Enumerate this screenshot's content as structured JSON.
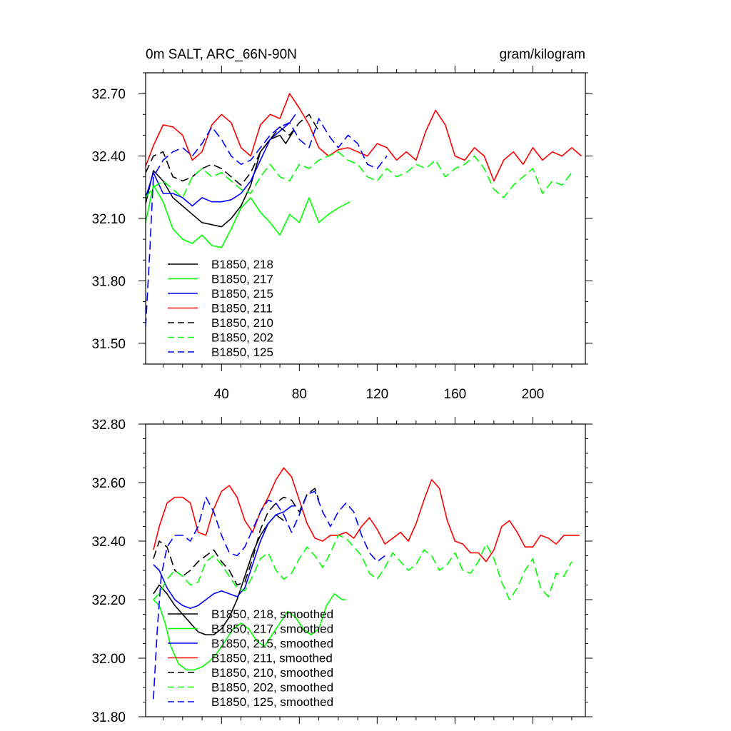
{
  "chart_data": [
    {
      "type": "line",
      "title": "0m SALT, ARC_66N-90N",
      "units": "gram/kilogram",
      "xlabel": "",
      "ylabel": "",
      "xlim": [
        1,
        227
      ],
      "ylim": [
        31.4,
        32.8
      ],
      "x_ticks": [
        40,
        80,
        120,
        160,
        200
      ],
      "y_ticks": [
        31.5,
        31.8,
        32.1,
        32.4,
        32.7
      ],
      "y_tick_labels": [
        "31.50",
        "31.80",
        "32.10",
        "32.40",
        "32.70"
      ],
      "legend_position": "lower-left",
      "series": [
        {
          "name": "B1850, 218",
          "color": "#000000",
          "dash": "solid",
          "x": [
            1,
            5,
            10,
            15,
            20,
            25,
            30,
            35,
            40,
            45,
            50,
            55,
            60,
            65,
            70,
            73,
            77
          ],
          "y": [
            32.17,
            32.33,
            32.28,
            32.2,
            32.16,
            32.12,
            32.08,
            32.07,
            32.06,
            32.1,
            32.16,
            32.26,
            32.42,
            32.48,
            32.5,
            32.46,
            32.52
          ]
        },
        {
          "name": "B1850, 217",
          "color": "#00ff00",
          "dash": "solid",
          "x": [
            1,
            5,
            10,
            15,
            20,
            25,
            30,
            35,
            40,
            45,
            50,
            55,
            60,
            65,
            70,
            75,
            80,
            85,
            90,
            95,
            100,
            106
          ],
          "y": [
            32.08,
            32.26,
            32.18,
            32.05,
            32.0,
            31.98,
            32.02,
            31.97,
            31.96,
            32.05,
            32.15,
            32.2,
            32.13,
            32.08,
            32.02,
            32.12,
            32.08,
            32.2,
            32.08,
            32.12,
            32.15,
            32.18
          ]
        },
        {
          "name": "B1850, 215",
          "color": "#0000ff",
          "dash": "solid",
          "x": [
            1,
            5,
            10,
            15,
            20,
            25,
            30,
            35,
            40,
            45,
            50,
            55,
            60,
            65,
            70,
            75,
            78
          ],
          "y": [
            32.2,
            32.32,
            32.22,
            32.22,
            32.2,
            32.16,
            32.2,
            32.18,
            32.18,
            32.19,
            32.22,
            32.28,
            32.38,
            32.48,
            32.52,
            32.56,
            32.6
          ]
        },
        {
          "name": "B1850, 211",
          "color": "#ff0000",
          "dash": "solid",
          "x": [
            1,
            5,
            10,
            15,
            20,
            25,
            30,
            35,
            40,
            45,
            50,
            55,
            60,
            65,
            70,
            75,
            80,
            85,
            90,
            95,
            100,
            105,
            110,
            115,
            120,
            125,
            130,
            135,
            140,
            145,
            150,
            155,
            160,
            165,
            170,
            175,
            180,
            185,
            190,
            195,
            200,
            205,
            210,
            215,
            220,
            225
          ],
          "y": [
            32.35,
            32.45,
            32.55,
            32.54,
            32.5,
            32.38,
            32.42,
            32.55,
            32.6,
            32.56,
            32.44,
            32.4,
            32.55,
            32.6,
            32.58,
            32.7,
            32.63,
            32.55,
            32.44,
            32.4,
            32.43,
            32.44,
            32.42,
            32.4,
            32.46,
            32.44,
            32.38,
            32.42,
            32.38,
            32.52,
            32.62,
            32.55,
            32.4,
            32.38,
            32.44,
            32.4,
            32.28,
            32.38,
            32.42,
            32.36,
            32.44,
            32.38,
            32.42,
            32.4,
            32.44,
            32.4
          ]
        },
        {
          "name": "B1850, 210",
          "color": "#000000",
          "dash": "dashed",
          "x": [
            1,
            5,
            10,
            15,
            20,
            25,
            30,
            35,
            40,
            45,
            50,
            55,
            60,
            65,
            70,
            75,
            80,
            85,
            90
          ],
          "y": [
            32.32,
            32.4,
            32.42,
            32.3,
            32.28,
            32.3,
            32.34,
            32.36,
            32.34,
            32.3,
            32.26,
            32.32,
            32.42,
            32.48,
            32.54,
            32.5,
            32.56,
            32.6,
            32.52
          ]
        },
        {
          "name": "B1850, 202",
          "color": "#00ff00",
          "dash": "dashed",
          "x": [
            1,
            5,
            10,
            15,
            20,
            25,
            30,
            35,
            40,
            45,
            50,
            55,
            60,
            65,
            70,
            75,
            80,
            85,
            90,
            95,
            100,
            105,
            110,
            115,
            120,
            125,
            130,
            135,
            140,
            145,
            150,
            155,
            160,
            165,
            170,
            175,
            180,
            185,
            190,
            195,
            200,
            205,
            210,
            215,
            220
          ],
          "y": [
            32.2,
            32.25,
            32.28,
            32.24,
            32.2,
            32.3,
            32.34,
            32.3,
            32.32,
            32.28,
            32.24,
            32.22,
            32.3,
            32.36,
            32.3,
            32.28,
            32.36,
            32.34,
            32.38,
            32.4,
            32.42,
            32.38,
            32.36,
            32.3,
            32.28,
            32.34,
            32.3,
            32.32,
            32.36,
            32.34,
            32.38,
            32.3,
            32.34,
            32.36,
            32.4,
            32.34,
            32.24,
            32.2,
            32.26,
            32.3,
            32.34,
            32.22,
            32.28,
            32.26,
            32.32
          ]
        },
        {
          "name": "B1850, 125",
          "color": "#0000ff",
          "dash": "dashed",
          "x": [
            1,
            3,
            5,
            10,
            15,
            20,
            25,
            30,
            35,
            40,
            45,
            50,
            55,
            60,
            65,
            70,
            75,
            80,
            85,
            90,
            95,
            100,
            105,
            110,
            115,
            120,
            125
          ],
          "y": [
            31.58,
            31.92,
            32.3,
            32.38,
            32.42,
            32.44,
            32.4,
            32.46,
            32.54,
            32.48,
            32.4,
            32.36,
            32.38,
            32.44,
            32.5,
            32.54,
            32.56,
            32.48,
            32.44,
            32.58,
            32.5,
            32.44,
            32.5,
            32.46,
            32.36,
            32.34,
            32.4
          ]
        }
      ]
    },
    {
      "type": "line",
      "title": "",
      "xlabel": "",
      "ylabel": "",
      "xlim": [
        1,
        227
      ],
      "ylim": [
        31.8,
        32.8
      ],
      "y_ticks": [
        31.8,
        32.0,
        32.2,
        32.4,
        32.6,
        32.8
      ],
      "y_tick_labels": [
        "31.80",
        "32.00",
        "32.20",
        "32.40",
        "32.60",
        "32.80"
      ],
      "legend_position": "lower-left",
      "series": [
        {
          "name": "B1850, 218, smoothed",
          "color": "#000000",
          "dash": "solid",
          "x": [
            5,
            8,
            12,
            16,
            20,
            24,
            28,
            32,
            36,
            40,
            44,
            48,
            52,
            56,
            60,
            64,
            68,
            72
          ],
          "y": [
            32.22,
            32.25,
            32.22,
            32.18,
            32.15,
            32.12,
            32.09,
            32.08,
            32.08,
            32.1,
            32.14,
            32.2,
            32.28,
            32.36,
            32.42,
            32.46,
            32.49,
            32.47
          ]
        },
        {
          "name": "B1850, 217, smoothed",
          "color": "#00ff00",
          "dash": "solid",
          "x": [
            5,
            8,
            11,
            14,
            18,
            22,
            26,
            30,
            34,
            38,
            42,
            46,
            50,
            54,
            58,
            62,
            66,
            70,
            74,
            78,
            82,
            86,
            90,
            94,
            98,
            102,
            104
          ],
          "y": [
            32.2,
            32.18,
            32.12,
            32.04,
            31.98,
            31.96,
            31.96,
            31.97,
            31.99,
            32.02,
            32.06,
            32.1,
            32.12,
            32.1,
            32.06,
            32.04,
            32.08,
            32.12,
            32.16,
            32.14,
            32.1,
            32.08,
            32.1,
            32.18,
            32.22,
            32.2,
            32.2
          ]
        },
        {
          "name": "B1850, 215, smoothed",
          "color": "#0000ff",
          "dash": "solid",
          "x": [
            5,
            8,
            12,
            16,
            20,
            24,
            28,
            32,
            36,
            40,
            44,
            48,
            52,
            56,
            60,
            64,
            68,
            72,
            76,
            78
          ],
          "y": [
            32.32,
            32.3,
            32.24,
            32.2,
            32.18,
            32.17,
            32.18,
            32.2,
            32.22,
            32.23,
            32.22,
            32.21,
            32.24,
            32.32,
            32.4,
            32.46,
            32.49,
            32.5,
            32.52,
            32.52
          ]
        },
        {
          "name": "B1850, 211, smoothed",
          "color": "#ff0000",
          "dash": "solid",
          "x": [
            5,
            8,
            12,
            16,
            20,
            24,
            28,
            32,
            36,
            40,
            44,
            48,
            52,
            56,
            60,
            64,
            68,
            72,
            76,
            80,
            84,
            88,
            92,
            96,
            100,
            104,
            108,
            112,
            116,
            120,
            124,
            128,
            132,
            136,
            140,
            144,
            148,
            152,
            156,
            160,
            164,
            168,
            172,
            176,
            180,
            184,
            188,
            192,
            196,
            200,
            204,
            208,
            212,
            216,
            220,
            224
          ],
          "y": [
            32.37,
            32.45,
            32.53,
            32.55,
            32.55,
            32.53,
            32.43,
            32.42,
            32.51,
            32.57,
            32.59,
            32.55,
            32.47,
            32.43,
            32.5,
            32.55,
            32.61,
            32.65,
            32.62,
            32.54,
            32.46,
            32.41,
            32.4,
            32.42,
            32.42,
            32.43,
            32.41,
            32.45,
            32.48,
            32.44,
            32.39,
            32.41,
            32.43,
            32.4,
            32.46,
            32.54,
            32.61,
            32.58,
            32.47,
            32.4,
            32.39,
            32.36,
            32.36,
            32.33,
            32.37,
            32.45,
            32.47,
            32.43,
            32.38,
            32.38,
            32.42,
            32.41,
            32.39,
            32.42,
            32.42,
            32.42
          ]
        },
        {
          "name": "B1850, 210, smoothed",
          "color": "#000000",
          "dash": "dashed",
          "x": [
            5,
            8,
            12,
            16,
            20,
            24,
            28,
            32,
            36,
            40,
            44,
            48,
            52,
            56,
            60,
            64,
            68,
            72,
            76,
            80,
            84,
            88,
            90
          ],
          "y": [
            32.34,
            32.4,
            32.38,
            32.3,
            32.28,
            32.3,
            32.33,
            32.35,
            32.37,
            32.33,
            32.3,
            32.25,
            32.26,
            32.34,
            32.44,
            32.5,
            32.53,
            32.55,
            32.54,
            32.5,
            32.56,
            32.58,
            32.54
          ]
        },
        {
          "name": "B1850, 202, smoothed",
          "color": "#00ff00",
          "dash": "dashed",
          "x": [
            5,
            8,
            12,
            16,
            20,
            24,
            28,
            32,
            36,
            40,
            44,
            48,
            52,
            56,
            60,
            64,
            68,
            72,
            76,
            80,
            84,
            88,
            92,
            96,
            100,
            104,
            108,
            112,
            116,
            120,
            124,
            128,
            132,
            136,
            140,
            144,
            148,
            152,
            156,
            160,
            164,
            168,
            172,
            176,
            180,
            184,
            188,
            192,
            196,
            200,
            204,
            208,
            212,
            216,
            220
          ],
          "y": [
            32.2,
            32.22,
            32.27,
            32.3,
            32.28,
            32.25,
            32.26,
            32.33,
            32.35,
            32.32,
            32.28,
            32.24,
            32.23,
            32.28,
            32.34,
            32.36,
            32.3,
            32.27,
            32.29,
            32.34,
            32.38,
            32.35,
            32.31,
            32.36,
            32.42,
            32.41,
            32.38,
            32.35,
            32.29,
            32.27,
            32.31,
            32.36,
            32.33,
            32.3,
            32.32,
            32.37,
            32.35,
            32.3,
            32.32,
            32.36,
            32.3,
            32.29,
            32.33,
            32.39,
            32.34,
            32.26,
            32.2,
            32.24,
            32.3,
            32.34,
            32.24,
            32.21,
            32.29,
            32.28,
            32.33
          ]
        },
        {
          "name": "B1850, 125, smoothed",
          "color": "#0000ff",
          "dash": "dashed",
          "x": [
            5,
            7,
            9,
            12,
            16,
            20,
            24,
            28,
            32,
            36,
            40,
            44,
            48,
            52,
            56,
            60,
            64,
            68,
            72,
            76,
            80,
            84,
            88,
            92,
            96,
            100,
            104,
            108,
            112,
            116,
            120,
            124
          ],
          "y": [
            31.86,
            32.1,
            32.28,
            32.38,
            32.42,
            32.42,
            32.4,
            32.45,
            32.55,
            32.5,
            32.42,
            32.36,
            32.35,
            32.38,
            32.44,
            32.5,
            32.54,
            32.53,
            32.49,
            32.43,
            32.49,
            32.56,
            32.57,
            32.5,
            32.45,
            32.5,
            32.53,
            32.5,
            32.42,
            32.36,
            32.33,
            32.35
          ]
        }
      ]
    }
  ]
}
